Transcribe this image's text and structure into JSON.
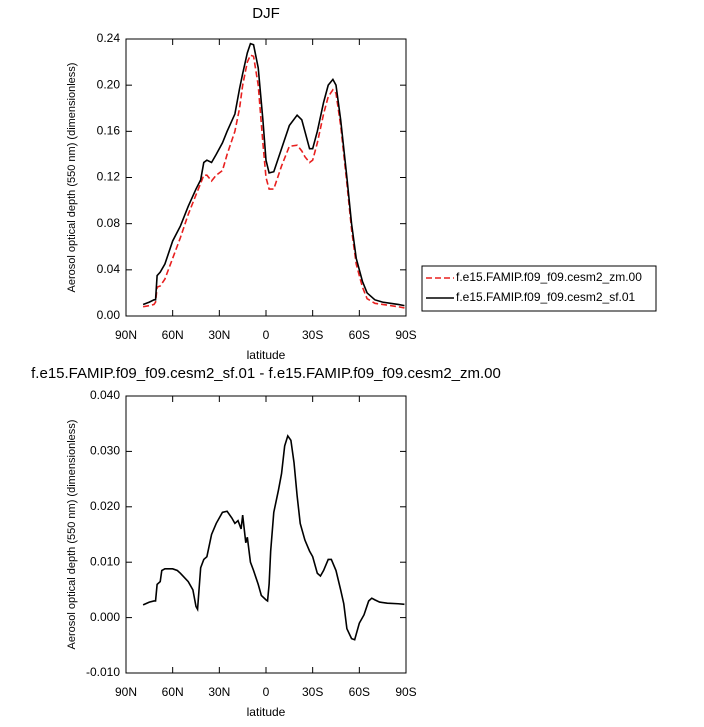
{
  "chart_data": [
    {
      "type": "line",
      "title": "DJF",
      "xlabel": "latitude",
      "ylabel": "Aerosol optical depth (550 nm) (dimensionless)",
      "xlim": [
        90,
        -90
      ],
      "ylim": [
        0,
        0.24
      ],
      "xticks": [
        {
          "value": 90,
          "label": "90N"
        },
        {
          "value": 60,
          "label": "60N"
        },
        {
          "value": 30,
          "label": "30N"
        },
        0,
        {
          "value": -30,
          "label": "30S"
        },
        {
          "value": -60,
          "label": "60S"
        },
        {
          "value": -90,
          "label": "90S"
        }
      ],
      "yticks": [
        {
          "value": 0,
          "label": "0.00"
        },
        0.04,
        0.08,
        0.12,
        0.16,
        {
          "value": 0.2,
          "label": "0.20"
        },
        0.24
      ],
      "legend": "right",
      "x": [
        79,
        75,
        72,
        71,
        70,
        68,
        65,
        60,
        55,
        50,
        45,
        42,
        40,
        38,
        35,
        32,
        28,
        25,
        20,
        17,
        15,
        12,
        10,
        8,
        5,
        2,
        0,
        -2,
        -5,
        -10,
        -15,
        -20,
        -23,
        -25,
        -28,
        -30,
        -33,
        -37,
        -40,
        -43,
        -45,
        -48,
        -52,
        -55,
        -58,
        -62,
        -65,
        -70,
        -75,
        -80,
        -85,
        -89
      ],
      "series": [
        {
          "name": "f.e15.FAMIP.f09_f09.cesm2_zm.00",
          "color": "#e8201f",
          "linestyle": "dashed",
          "values": [
            0.008,
            0.009,
            0.01,
            0.012,
            0.025,
            0.026,
            0.032,
            0.05,
            0.068,
            0.088,
            0.105,
            0.115,
            0.122,
            0.122,
            0.117,
            0.122,
            0.126,
            0.14,
            0.16,
            0.18,
            0.2,
            0.22,
            0.226,
            0.225,
            0.2,
            0.15,
            0.12,
            0.11,
            0.11,
            0.13,
            0.147,
            0.148,
            0.143,
            0.138,
            0.133,
            0.135,
            0.15,
            0.175,
            0.19,
            0.196,
            0.193,
            0.165,
            0.115,
            0.075,
            0.045,
            0.025,
            0.015,
            0.011,
            0.01,
            0.009,
            0.008,
            0.007
          ]
        },
        {
          "name": "f.e15.FAMIP.f09_f09.cesm2_sf.01",
          "color": "#000000",
          "linestyle": "solid",
          "values": [
            0.01,
            0.012,
            0.014,
            0.014,
            0.035,
            0.038,
            0.045,
            0.065,
            0.078,
            0.095,
            0.11,
            0.118,
            0.133,
            0.135,
            0.133,
            0.14,
            0.15,
            0.16,
            0.175,
            0.197,
            0.21,
            0.228,
            0.236,
            0.235,
            0.215,
            0.17,
            0.135,
            0.124,
            0.125,
            0.145,
            0.165,
            0.174,
            0.17,
            0.16,
            0.145,
            0.145,
            0.16,
            0.185,
            0.2,
            0.205,
            0.2,
            0.17,
            0.12,
            0.08,
            0.05,
            0.03,
            0.02,
            0.014,
            0.012,
            0.011,
            0.01,
            0.009
          ]
        }
      ]
    },
    {
      "type": "line",
      "title": "f.e15.FAMIP.f09_f09.cesm2_sf.01 - f.e15.FAMIP.f09_f09.cesm2_zm.00",
      "xlabel": "latitude",
      "ylabel": "Aerosol optical depth (550 nm) (dimensionless)",
      "xlim": [
        90,
        -90
      ],
      "ylim": [
        -0.01,
        0.04
      ],
      "xticks": [
        {
          "value": 90,
          "label": "90N"
        },
        {
          "value": 60,
          "label": "60N"
        },
        {
          "value": 30,
          "label": "30N"
        },
        0,
        {
          "value": -30,
          "label": "30S"
        },
        {
          "value": -60,
          "label": "60S"
        },
        {
          "value": -90,
          "label": "90S"
        }
      ],
      "yticks": [
        {
          "value": -0.01,
          "label": "-0.010"
        },
        {
          "value": 0,
          "label": "0.000"
        },
        {
          "value": 0.01,
          "label": "0.010"
        },
        {
          "value": 0.02,
          "label": "0.020"
        },
        {
          "value": 0.03,
          "label": "0.030"
        },
        {
          "value": 0.04,
          "label": "0.040"
        }
      ],
      "color": "#000000",
      "x": [
        79,
        75,
        72,
        71,
        70,
        68,
        67,
        65,
        60,
        57,
        55,
        50,
        47,
        45,
        44,
        42,
        40,
        38,
        35,
        32,
        30,
        28,
        25,
        22,
        20,
        18,
        16,
        15,
        13,
        12,
        10,
        8,
        5,
        3,
        0,
        -1,
        -2,
        -3,
        -5,
        -8,
        -10,
        -12,
        -14,
        -16,
        -18,
        -20,
        -22,
        -25,
        -28,
        -30,
        -33,
        -35,
        -37,
        -40,
        -42,
        -45,
        -48,
        -50,
        -52,
        -55,
        -57,
        -58,
        -60,
        -63,
        -66,
        -68,
        -70,
        -73,
        -78,
        -85,
        -89
      ],
      "values": [
        0.0023,
        0.0028,
        0.003,
        0.003,
        0.006,
        0.0065,
        0.0085,
        0.0088,
        0.0088,
        0.0085,
        0.008,
        0.0065,
        0.005,
        0.002,
        0.0015,
        0.009,
        0.0105,
        0.011,
        0.015,
        0.017,
        0.018,
        0.019,
        0.0192,
        0.018,
        0.017,
        0.0175,
        0.016,
        0.0185,
        0.0135,
        0.0145,
        0.01,
        0.0085,
        0.006,
        0.004,
        0.0032,
        0.003,
        0.006,
        0.012,
        0.019,
        0.023,
        0.026,
        0.031,
        0.0328,
        0.032,
        0.028,
        0.022,
        0.017,
        0.014,
        0.012,
        0.011,
        0.008,
        0.0075,
        0.0085,
        0.0105,
        0.0105,
        0.0085,
        0.005,
        0.0025,
        -0.002,
        -0.0038,
        -0.004,
        -0.003,
        -0.001,
        0.0005,
        0.003,
        0.0035,
        0.0032,
        0.0028,
        0.0026,
        0.0025,
        0.0024
      ]
    }
  ]
}
